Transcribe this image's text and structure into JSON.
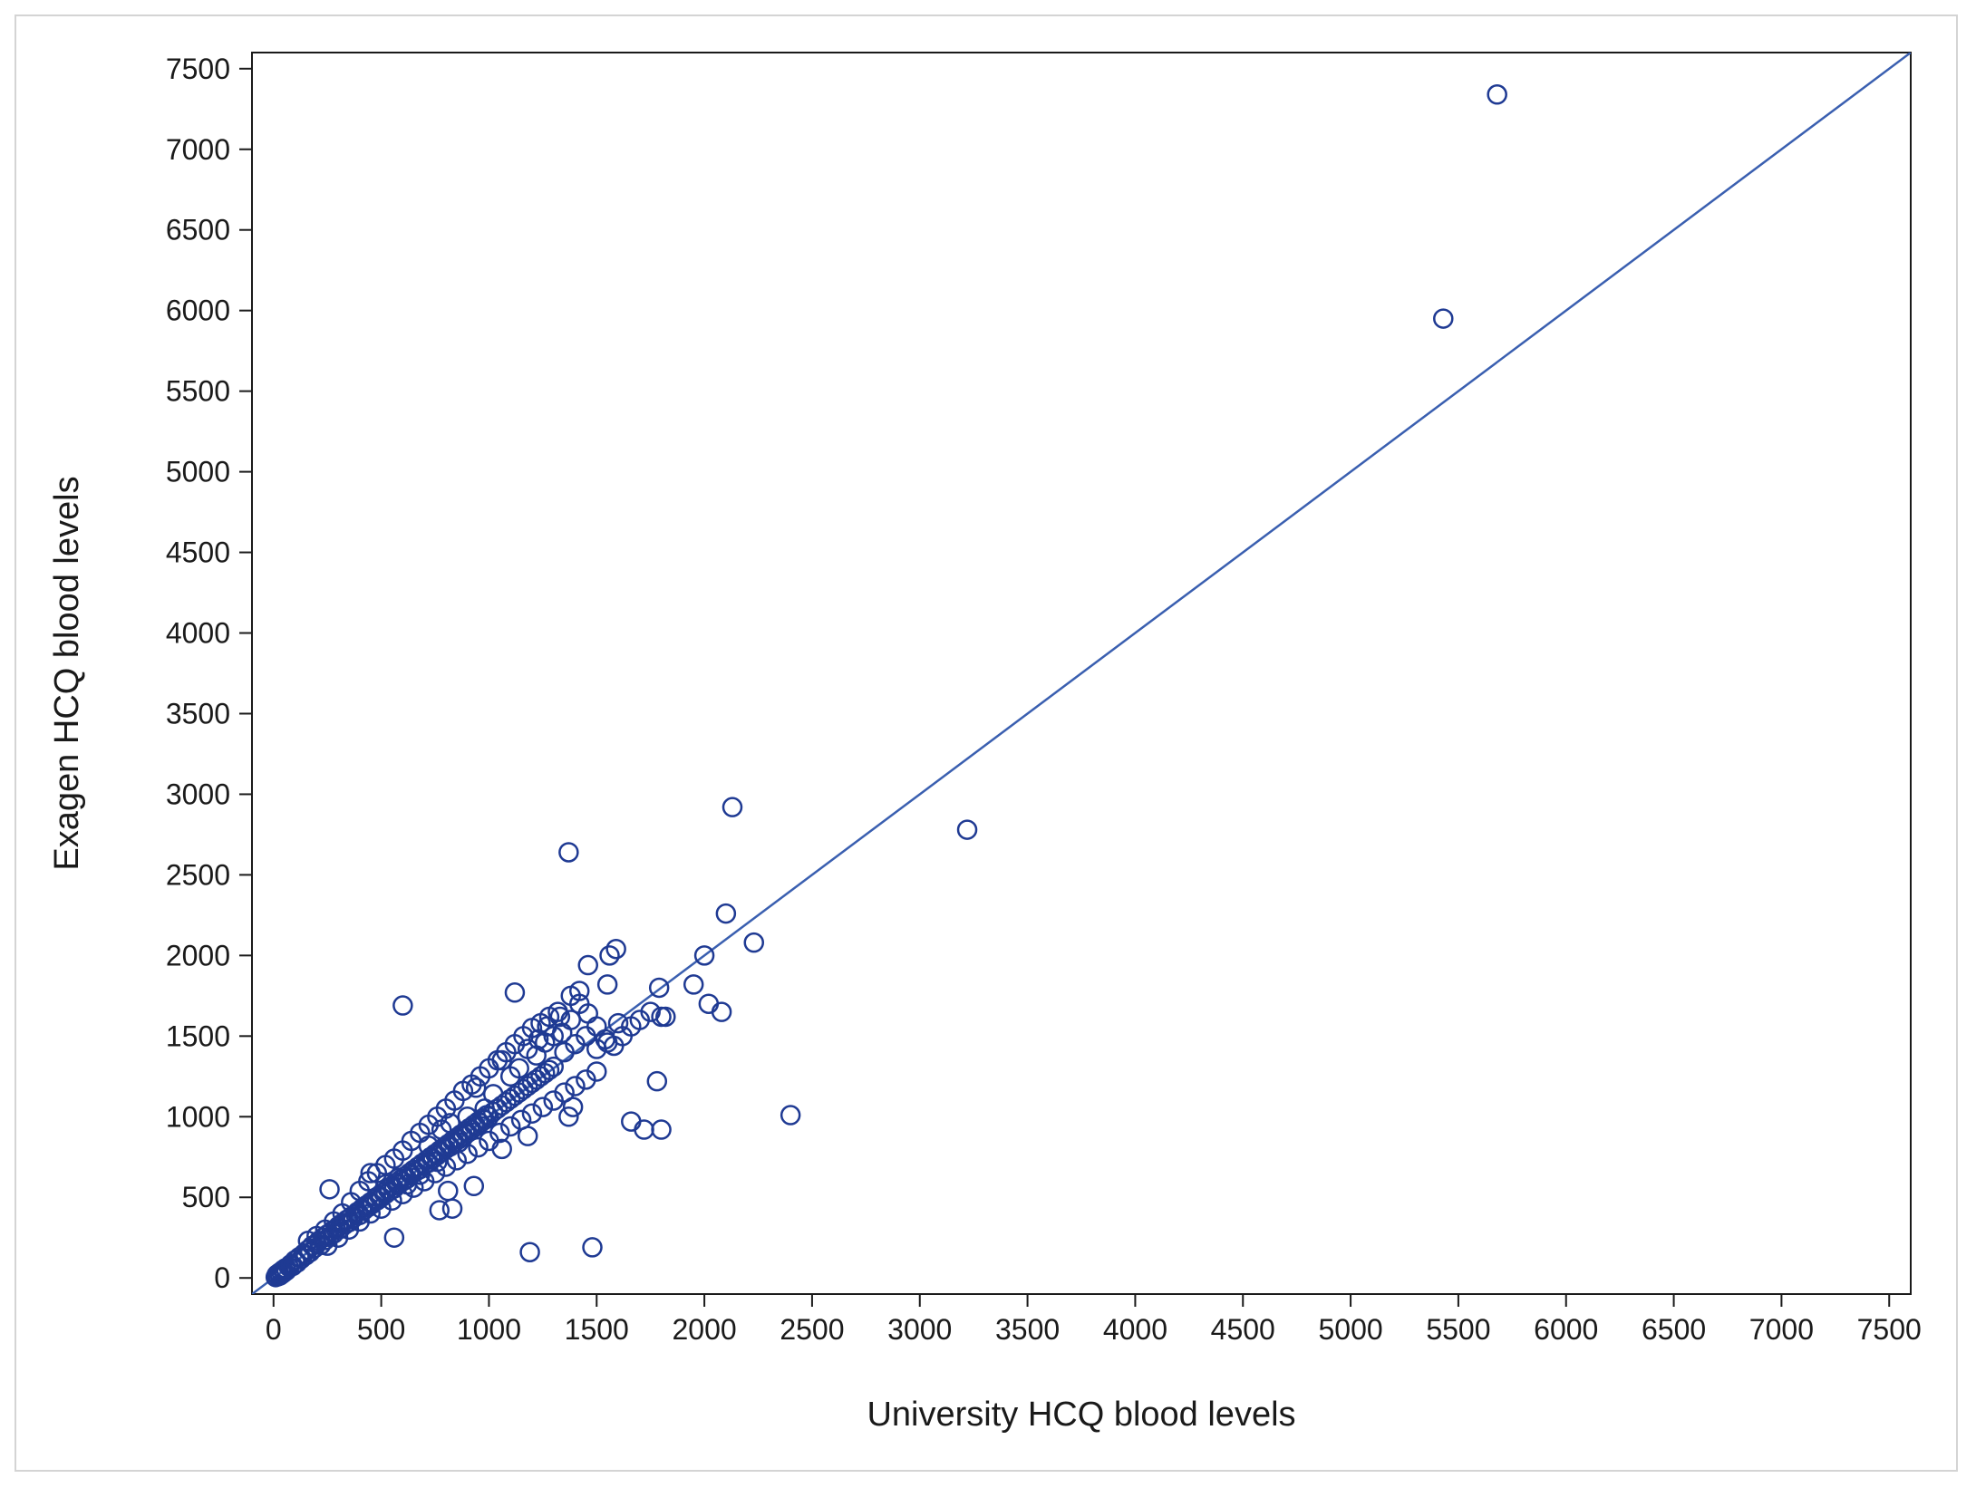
{
  "chart_data": {
    "type": "scatter",
    "title": "",
    "xlabel": "University HCQ blood levels",
    "ylabel": "Exagen HCQ blood levels",
    "xlim": [
      -100,
      7600
    ],
    "ylim": [
      -100,
      7600
    ],
    "xticks": [
      0,
      500,
      1000,
      1500,
      2000,
      2500,
      3000,
      3500,
      4000,
      4500,
      5000,
      5500,
      6000,
      6500,
      7000,
      7500
    ],
    "yticks": [
      0,
      500,
      1000,
      1500,
      2000,
      2500,
      3000,
      3500,
      4000,
      4500,
      5000,
      5500,
      6000,
      6500,
      7000,
      7500
    ],
    "grid": false,
    "legend": "none",
    "colors": {
      "marker": "#1f3a93",
      "line": "#3a5fb0",
      "axis": "#1a1a1a",
      "frame": "#d4d4d4"
    },
    "reference_line": {
      "type": "identity",
      "x": [
        -100,
        7600
      ],
      "y": [
        -100,
        7600
      ]
    },
    "points": [
      [
        10,
        5
      ],
      [
        15,
        20
      ],
      [
        20,
        10
      ],
      [
        25,
        30
      ],
      [
        30,
        15
      ],
      [
        35,
        40
      ],
      [
        40,
        25
      ],
      [
        45,
        50
      ],
      [
        50,
        35
      ],
      [
        55,
        60
      ],
      [
        60,
        45
      ],
      [
        70,
        70
      ],
      [
        80,
        85
      ],
      [
        90,
        75
      ],
      [
        100,
        110
      ],
      [
        110,
        95
      ],
      [
        120,
        130
      ],
      [
        130,
        120
      ],
      [
        140,
        150
      ],
      [
        150,
        140
      ],
      [
        160,
        175
      ],
      [
        170,
        160
      ],
      [
        180,
        200
      ],
      [
        190,
        185
      ],
      [
        200,
        210
      ],
      [
        210,
        230
      ],
      [
        220,
        205
      ],
      [
        230,
        250
      ],
      [
        240,
        235
      ],
      [
        250,
        270
      ],
      [
        260,
        255
      ],
      [
        270,
        290
      ],
      [
        280,
        275
      ],
      [
        290,
        300
      ],
      [
        300,
        320
      ],
      [
        310,
        305
      ],
      [
        320,
        340
      ],
      [
        330,
        330
      ],
      [
        340,
        360
      ],
      [
        350,
        345
      ],
      [
        360,
        380
      ],
      [
        370,
        370
      ],
      [
        380,
        395
      ],
      [
        390,
        410
      ],
      [
        400,
        390
      ],
      [
        410,
        430
      ],
      [
        420,
        420
      ],
      [
        430,
        450
      ],
      [
        440,
        440
      ],
      [
        450,
        470
      ],
      [
        460,
        460
      ],
      [
        470,
        490
      ],
      [
        480,
        480
      ],
      [
        490,
        510
      ],
      [
        500,
        500
      ],
      [
        510,
        530
      ],
      [
        520,
        520
      ],
      [
        530,
        550
      ],
      [
        540,
        540
      ],
      [
        550,
        570
      ],
      [
        560,
        555
      ],
      [
        570,
        590
      ],
      [
        580,
        580
      ],
      [
        590,
        610
      ],
      [
        600,
        600
      ],
      [
        610,
        630
      ],
      [
        620,
        615
      ],
      [
        630,
        650
      ],
      [
        640,
        640
      ],
      [
        650,
        670
      ],
      [
        660,
        660
      ],
      [
        670,
        690
      ],
      [
        680,
        675
      ],
      [
        690,
        710
      ],
      [
        700,
        700
      ],
      [
        710,
        730
      ],
      [
        720,
        715
      ],
      [
        730,
        750
      ],
      [
        740,
        740
      ],
      [
        750,
        770
      ],
      [
        760,
        760
      ],
      [
        770,
        790
      ],
      [
        780,
        780
      ],
      [
        790,
        810
      ],
      [
        800,
        800
      ],
      [
        810,
        830
      ],
      [
        820,
        815
      ],
      [
        830,
        850
      ],
      [
        840,
        840
      ],
      [
        850,
        870
      ],
      [
        860,
        860
      ],
      [
        870,
        890
      ],
      [
        880,
        880
      ],
      [
        890,
        910
      ],
      [
        900,
        900
      ],
      [
        910,
        930
      ],
      [
        920,
        920
      ],
      [
        930,
        950
      ],
      [
        940,
        940
      ],
      [
        950,
        970
      ],
      [
        960,
        960
      ],
      [
        970,
        990
      ],
      [
        980,
        980
      ],
      [
        990,
        1010
      ],
      [
        1000,
        1000
      ],
      [
        1020,
        1030
      ],
      [
        1040,
        1050
      ],
      [
        1060,
        1070
      ],
      [
        1080,
        1090
      ],
      [
        1100,
        1110
      ],
      [
        1120,
        1130
      ],
      [
        1140,
        1150
      ],
      [
        1160,
        1170
      ],
      [
        1180,
        1190
      ],
      [
        1200,
        1210
      ],
      [
        1220,
        1230
      ],
      [
        1240,
        1250
      ],
      [
        1260,
        1270
      ],
      [
        1280,
        1290
      ],
      [
        1300,
        1310
      ],
      [
        160,
        230
      ],
      [
        200,
        260
      ],
      [
        240,
        300
      ],
      [
        280,
        350
      ],
      [
        320,
        400
      ],
      [
        360,
        470
      ],
      [
        400,
        540
      ],
      [
        440,
        600
      ],
      [
        480,
        650
      ],
      [
        520,
        700
      ],
      [
        560,
        740
      ],
      [
        600,
        790
      ],
      [
        640,
        850
      ],
      [
        680,
        900
      ],
      [
        720,
        950
      ],
      [
        760,
        1000
      ],
      [
        800,
        1050
      ],
      [
        840,
        1100
      ],
      [
        880,
        1160
      ],
      [
        920,
        1200
      ],
      [
        960,
        1250
      ],
      [
        1000,
        1300
      ],
      [
        1040,
        1350
      ],
      [
        1080,
        1400
      ],
      [
        1120,
        1450
      ],
      [
        1160,
        1500
      ],
      [
        1200,
        1550
      ],
      [
        1240,
        1580
      ],
      [
        1280,
        1620
      ],
      [
        1320,
        1650
      ],
      [
        250,
        200
      ],
      [
        300,
        250
      ],
      [
        350,
        300
      ],
      [
        400,
        350
      ],
      [
        450,
        400
      ],
      [
        500,
        430
      ],
      [
        550,
        480
      ],
      [
        600,
        520
      ],
      [
        650,
        560
      ],
      [
        700,
        600
      ],
      [
        750,
        650
      ],
      [
        800,
        690
      ],
      [
        850,
        730
      ],
      [
        900,
        770
      ],
      [
        950,
        810
      ],
      [
        1000,
        850
      ],
      [
        1050,
        900
      ],
      [
        1100,
        940
      ],
      [
        1150,
        980
      ],
      [
        1200,
        1020
      ],
      [
        1250,
        1060
      ],
      [
        1300,
        1100
      ],
      [
        1350,
        1150
      ],
      [
        1400,
        1190
      ],
      [
        1450,
        1230
      ],
      [
        1500,
        1280
      ],
      [
        450,
        650
      ],
      [
        520,
        580
      ],
      [
        580,
        620
      ],
      [
        620,
        580
      ],
      [
        680,
        640
      ],
      [
        720,
        820
      ],
      [
        760,
        720
      ],
      [
        780,
        920
      ],
      [
        820,
        960
      ],
      [
        860,
        840
      ],
      [
        900,
        1000
      ],
      [
        940,
        1180
      ],
      [
        980,
        1050
      ],
      [
        1020,
        1140
      ],
      [
        1060,
        1350
      ],
      [
        1100,
        1250
      ],
      [
        1140,
        1300
      ],
      [
        1180,
        1420
      ],
      [
        1220,
        1380
      ],
      [
        1260,
        1460
      ],
      [
        1300,
        1500
      ],
      [
        1340,
        1520
      ],
      [
        1380,
        1600
      ],
      [
        1420,
        1700
      ],
      [
        1460,
        1640
      ],
      [
        1500,
        1560
      ],
      [
        1540,
        1480
      ],
      [
        1580,
        1440
      ],
      [
        1620,
        1500
      ],
      [
        1660,
        1560
      ],
      [
        1350,
        1400
      ],
      [
        1400,
        1450
      ],
      [
        1450,
        1500
      ],
      [
        1500,
        1420
      ],
      [
        1550,
        1460
      ],
      [
        1600,
        1580
      ],
      [
        1700,
        1600
      ],
      [
        1750,
        1650
      ],
      [
        1800,
        1620
      ],
      [
        1820,
        1620
      ],
      [
        1790,
        1800
      ],
      [
        1560,
        2000
      ],
      [
        1590,
        2040
      ],
      [
        1460,
        1940
      ],
      [
        1550,
        1820
      ],
      [
        1380,
        1750
      ],
      [
        1420,
        1780
      ],
      [
        1330,
        1620
      ],
      [
        1270,
        1560
      ],
      [
        1230,
        1480
      ],
      [
        1950,
        1820
      ],
      [
        2020,
        1700
      ],
      [
        2080,
        1650
      ],
      [
        2000,
        2000
      ],
      [
        2100,
        2260
      ],
      [
        2230,
        2080
      ],
      [
        2130,
        2920
      ],
      [
        1370,
        2640
      ],
      [
        3220,
        2780
      ],
      [
        2400,
        1010
      ],
      [
        1780,
        1220
      ],
      [
        1660,
        970
      ],
      [
        1720,
        920
      ],
      [
        1800,
        920
      ],
      [
        1370,
        1000
      ],
      [
        1390,
        1060
      ],
      [
        1180,
        880
      ],
      [
        1060,
        800
      ],
      [
        600,
        1690
      ],
      [
        1120,
        1770
      ],
      [
        260,
        550
      ],
      [
        770,
        420
      ],
      [
        830,
        430
      ],
      [
        810,
        540
      ],
      [
        930,
        570
      ],
      [
        560,
        250
      ],
      [
        1190,
        160
      ],
      [
        1480,
        190
      ],
      [
        5430,
        5950
      ],
      [
        5680,
        7340
      ]
    ]
  }
}
